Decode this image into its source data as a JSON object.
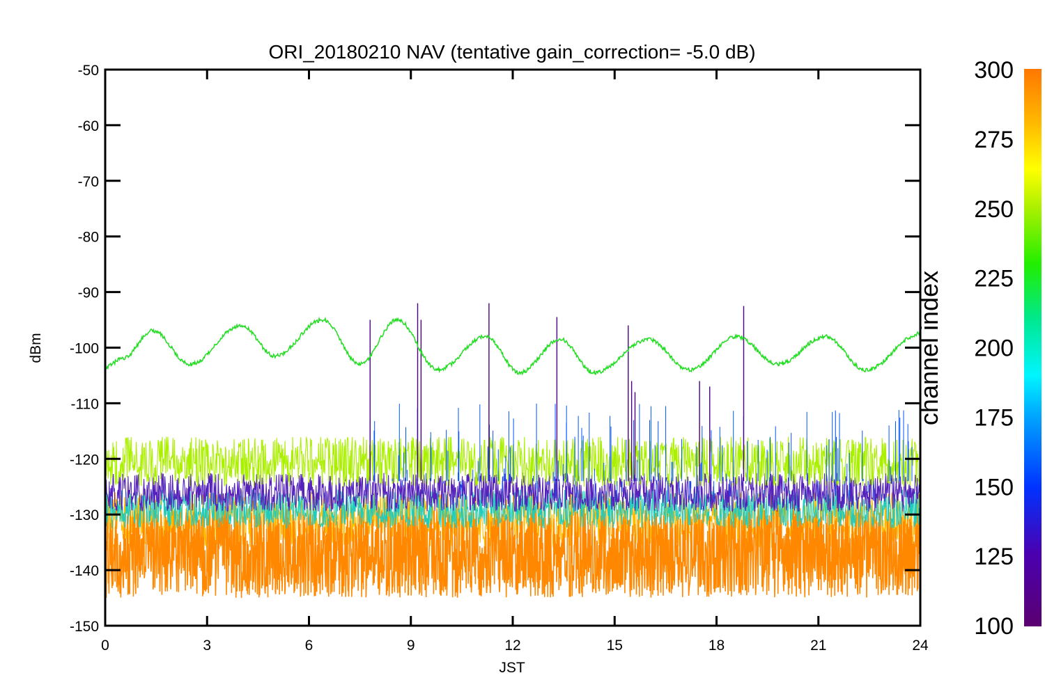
{
  "chart_data": {
    "type": "line",
    "title": "ORI_20180210 NAV (tentative gain_correction= -5.0 dB)",
    "xlabel": "JST",
    "ylabel": "dBm",
    "xlim": [
      0,
      24
    ],
    "ylim": [
      -150,
      -50
    ],
    "x_ticks": [
      "0",
      "3",
      "6",
      "9",
      "12",
      "15",
      "18",
      "21",
      "24"
    ],
    "y_ticks": [
      "-50",
      "-60",
      "-70",
      "-80",
      "-90",
      "-100",
      "-110",
      "-120",
      "-130",
      "-140",
      "-150"
    ],
    "grid": false,
    "colorbar": {
      "label": "channel index",
      "range": [
        100,
        300
      ],
      "ticks": [
        "100",
        "125",
        "150",
        "175",
        "200",
        "225",
        "250",
        "275",
        "300"
      ],
      "colormap": "rainbow (purple to orange)"
    },
    "series": [
      {
        "color": "#22dd22",
        "x": [
          0,
          0.5,
          1.4,
          2.5,
          4.0,
          5.0,
          6.4,
          7.5,
          8.6,
          9.8,
          11.2,
          12.2,
          13.4,
          14.4,
          16.0,
          17.2,
          18.6,
          19.8,
          21.2,
          22.4,
          24
        ],
        "y": [
          -103.5,
          -102,
          -97,
          -103,
          -96,
          -101.5,
          -95,
          -103,
          -95,
          -104,
          -98,
          -104.5,
          -98.5,
          -104.5,
          -98.5,
          -104,
          -98,
          -103,
          -98,
          -104,
          -97.5
        ]
      },
      {
        "color": "#aaf000",
        "x": [
          0,
          24
        ],
        "y": [
          -120.5,
          -120.5
        ]
      },
      {
        "color": "#5522bb",
        "x": [
          0,
          24
        ],
        "y": [
          -126,
          -126
        ]
      },
      {
        "color": "#22ccbb",
        "x": [
          0,
          24
        ],
        "y": [
          -129,
          -129
        ]
      },
      {
        "color": "#ffbb00",
        "x": [
          0,
          24
        ],
        "y": [
          -131,
          -131
        ]
      },
      {
        "color": "#ff8800",
        "x": [
          0,
          24
        ],
        "y": [
          -137,
          -137
        ]
      },
      {
        "color": "#4b0082",
        "x": [
          7.8,
          9.2,
          9.3,
          11.3,
          13.3,
          15.4,
          15.5,
          15.6,
          17.5,
          17.8,
          18.8
        ],
        "y": [
          -95,
          -92,
          -95,
          -92,
          -94.5,
          -96,
          -106,
          -108,
          -106,
          -107,
          -92.5
        ]
      }
    ]
  }
}
